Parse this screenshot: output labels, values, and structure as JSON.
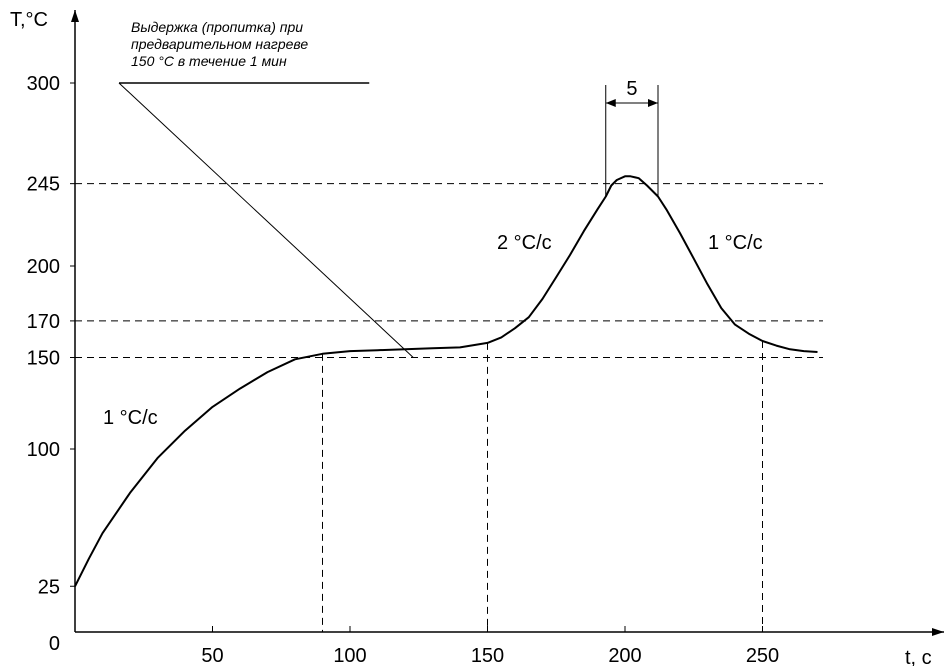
{
  "chart_data": {
    "type": "line",
    "ylabel": "T,°C",
    "xlabel": "t, c",
    "xlim": [
      0,
      275
    ],
    "ylim": [
      0,
      330
    ],
    "y_ticks": [
      "0",
      "25",
      "100",
      "150",
      "170",
      "200",
      "245",
      "300"
    ],
    "x_ticks": [
      "50",
      "100",
      "150",
      "200",
      "250"
    ],
    "series": [
      {
        "x": [
          0,
          5,
          10,
          20,
          30,
          40,
          50,
          60,
          70,
          80,
          90,
          100,
          110,
          120,
          130,
          140,
          150,
          155,
          160,
          165,
          170,
          175,
          180,
          185,
          190,
          193,
          195,
          197,
          200,
          202,
          205,
          208,
          212,
          215,
          220,
          225,
          230,
          235,
          240,
          245,
          250,
          255,
          260,
          265,
          270
        ],
        "y": [
          25,
          40,
          54,
          76,
          95,
          110,
          123,
          133,
          142,
          149,
          152,
          153.5,
          154,
          154.5,
          155,
          155.5,
          158,
          161,
          166,
          172,
          182,
          194,
          206,
          219,
          231,
          238,
          244,
          247,
          249,
          249,
          248,
          244,
          238,
          231,
          218,
          204,
          190,
          177,
          168,
          163,
          159,
          156.5,
          154.5,
          153.5,
          153
        ]
      }
    ],
    "guide_lines": {
      "horizontal": [
        150,
        170,
        245
      ],
      "vertical": [
        90,
        150,
        250
      ]
    },
    "annotations": {
      "hold_note": [
        "Выдержка (пропитка) при",
        "предварительном нагреве",
        "150 °С в течение 1 мин"
      ],
      "rate_start": "1 °С/с",
      "rate_rise": "2 °С/с",
      "rate_fall": "1 °С/с",
      "peak_width": "5"
    },
    "grid": false,
    "legend": "none"
  }
}
